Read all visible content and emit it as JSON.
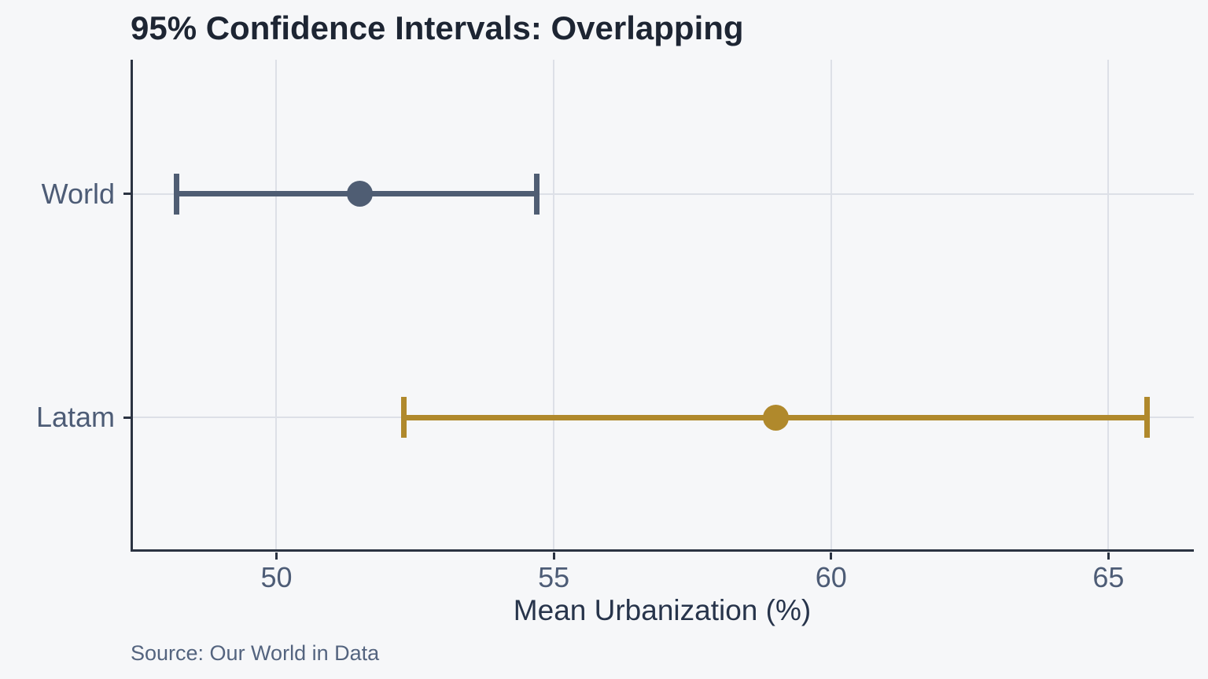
{
  "title": "95% Confidence Intervals: Overlapping",
  "x_axis_label": "Mean Urbanization (%)",
  "source_note": "Source: Our World in Data",
  "colors": {
    "background": "#f6f7f9",
    "gridline": "#dde0e7",
    "axis_line": "#2b3342",
    "title_text": "#1d2533",
    "tick_text": "#4d5c76",
    "axis_label_text": "#27344b",
    "source_text": "#54647f"
  },
  "chart_data": {
    "type": "errorbar",
    "title": "95% Confidence Intervals: Overlapping",
    "xlabel": "Mean Urbanization (%)",
    "ylabel": "",
    "xlim": [
      47.37,
      66.54
    ],
    "x_ticks": [
      50,
      55,
      60,
      65
    ],
    "categories": [
      "World",
      "Latam"
    ],
    "series": [
      {
        "name": "World",
        "mean": 51.5,
        "ci_low": 48.2,
        "ci_high": 54.7,
        "color": "#4f5d73"
      },
      {
        "name": "Latam",
        "mean": 59.0,
        "ci_low": 52.3,
        "ci_high": 65.7,
        "color": "#b0892c"
      }
    ],
    "ci_level": "95%",
    "grid": true,
    "legend": false,
    "source_note": "Source: Our World in Data"
  }
}
